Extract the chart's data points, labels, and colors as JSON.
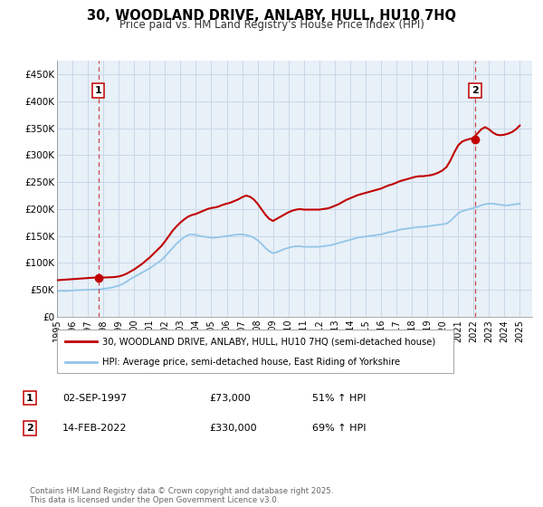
{
  "title": "30, WOODLAND DRIVE, ANLABY, HULL, HU10 7HQ",
  "subtitle": "Price paid vs. HM Land Registry's House Price Index (HPI)",
  "xlim": [
    1995.0,
    2025.8
  ],
  "ylim": [
    0,
    475000
  ],
  "yticks": [
    0,
    50000,
    100000,
    150000,
    200000,
    250000,
    300000,
    350000,
    400000,
    450000
  ],
  "ytick_labels": [
    "£0",
    "£50K",
    "£100K",
    "£150K",
    "£200K",
    "£250K",
    "£300K",
    "£350K",
    "£400K",
    "£450K"
  ],
  "xticks": [
    1995,
    1996,
    1997,
    1998,
    1999,
    2000,
    2001,
    2002,
    2003,
    2004,
    2005,
    2006,
    2007,
    2008,
    2009,
    2010,
    2011,
    2012,
    2013,
    2014,
    2015,
    2016,
    2017,
    2018,
    2019,
    2020,
    2021,
    2022,
    2023,
    2024,
    2025
  ],
  "hpi_line_color": "#92C5E8",
  "price_line_color": "#C00000",
  "marker_color": "#C00000",
  "vline_color": "#C00000",
  "grid_color": "#C8D8E8",
  "background_color": "#E8F0F8",
  "legend_label_price": "30, WOODLAND DRIVE, ANLABY, HULL, HU10 7HQ (semi-detached house)",
  "legend_label_hpi": "HPI: Average price, semi-detached house, East Riding of Yorkshire",
  "sale1_x": 1997.67,
  "sale1_y": 73000,
  "sale1_label": "1",
  "sale2_x": 2022.12,
  "sale2_y": 330000,
  "sale2_label": "2",
  "footer": "Contains HM Land Registry data © Crown copyright and database right 2025.\nThis data is licensed under the Open Government Licence v3.0.",
  "table_rows": [
    {
      "num": "1",
      "date": "02-SEP-1997",
      "price": "£73,000",
      "hpi": "51% ↑ HPI"
    },
    {
      "num": "2",
      "date": "14-FEB-2022",
      "price": "£330,000",
      "hpi": "69% ↑ HPI"
    }
  ],
  "hpi_data_x": [
    1995.0,
    1995.25,
    1995.5,
    1995.75,
    1996.0,
    1996.25,
    1996.5,
    1996.75,
    1997.0,
    1997.25,
    1997.5,
    1997.75,
    1998.0,
    1998.25,
    1998.5,
    1998.75,
    1999.0,
    1999.25,
    1999.5,
    1999.75,
    2000.0,
    2000.25,
    2000.5,
    2000.75,
    2001.0,
    2001.25,
    2001.5,
    2001.75,
    2002.0,
    2002.25,
    2002.5,
    2002.75,
    2003.0,
    2003.25,
    2003.5,
    2003.75,
    2004.0,
    2004.25,
    2004.5,
    2004.75,
    2005.0,
    2005.25,
    2005.5,
    2005.75,
    2006.0,
    2006.25,
    2006.5,
    2006.75,
    2007.0,
    2007.25,
    2007.5,
    2007.75,
    2008.0,
    2008.25,
    2008.5,
    2008.75,
    2009.0,
    2009.25,
    2009.5,
    2009.75,
    2010.0,
    2010.25,
    2010.5,
    2010.75,
    2011.0,
    2011.25,
    2011.5,
    2011.75,
    2012.0,
    2012.25,
    2012.5,
    2012.75,
    2013.0,
    2013.25,
    2013.5,
    2013.75,
    2014.0,
    2014.25,
    2014.5,
    2014.75,
    2015.0,
    2015.25,
    2015.5,
    2015.75,
    2016.0,
    2016.25,
    2016.5,
    2016.75,
    2017.0,
    2017.25,
    2017.5,
    2017.75,
    2018.0,
    2018.25,
    2018.5,
    2018.75,
    2019.0,
    2019.25,
    2019.5,
    2019.75,
    2020.0,
    2020.25,
    2020.5,
    2020.75,
    2021.0,
    2021.25,
    2021.5,
    2021.75,
    2022.0,
    2022.25,
    2022.5,
    2022.75,
    2023.0,
    2023.25,
    2023.5,
    2023.75,
    2024.0,
    2024.25,
    2024.5,
    2024.75,
    2025.0
  ],
  "hpi_data_y": [
    48000,
    48200,
    48000,
    48500,
    49000,
    49500,
    49800,
    50000,
    50200,
    50500,
    50800,
    51000,
    52000,
    53000,
    54000,
    56000,
    58000,
    61000,
    65000,
    70000,
    74000,
    78000,
    82000,
    86000,
    90000,
    95000,
    100000,
    105000,
    112000,
    120000,
    128000,
    136000,
    142000,
    148000,
    152000,
    153000,
    152000,
    150000,
    149000,
    148000,
    147000,
    147000,
    148000,
    149000,
    150000,
    151000,
    152000,
    153000,
    153000,
    152000,
    150000,
    147000,
    142000,
    136000,
    128000,
    122000,
    118000,
    120000,
    123000,
    126000,
    128000,
    130000,
    131000,
    131000,
    130000,
    130000,
    130000,
    130000,
    130000,
    131000,
    132000,
    133000,
    135000,
    137000,
    139000,
    141000,
    143000,
    145000,
    147000,
    148000,
    149000,
    150000,
    151000,
    152000,
    153000,
    155000,
    157000,
    158000,
    160000,
    162000,
    163000,
    164000,
    165000,
    166000,
    167000,
    167000,
    168000,
    169000,
    170000,
    171000,
    172000,
    173000,
    178000,
    185000,
    192000,
    196000,
    198000,
    200000,
    202000,
    204000,
    207000,
    209000,
    210000,
    210000,
    209000,
    208000,
    207000,
    207000,
    208000,
    209000,
    210000
  ],
  "price_data_x": [
    1995.0,
    1995.25,
    1995.5,
    1995.75,
    1996.0,
    1996.25,
    1996.5,
    1996.75,
    1997.0,
    1997.25,
    1997.5,
    1997.75,
    1998.0,
    1998.25,
    1998.5,
    1998.75,
    1999.0,
    1999.25,
    1999.5,
    1999.75,
    2000.0,
    2000.25,
    2000.5,
    2000.75,
    2001.0,
    2001.25,
    2001.5,
    2001.75,
    2002.0,
    2002.25,
    2002.5,
    2002.75,
    2003.0,
    2003.25,
    2003.5,
    2003.75,
    2004.0,
    2004.25,
    2004.5,
    2004.75,
    2005.0,
    2005.25,
    2005.5,
    2005.75,
    2006.0,
    2006.25,
    2006.5,
    2006.75,
    2007.0,
    2007.25,
    2007.5,
    2007.75,
    2008.0,
    2008.25,
    2008.5,
    2008.75,
    2009.0,
    2009.25,
    2009.5,
    2009.75,
    2010.0,
    2010.25,
    2010.5,
    2010.75,
    2011.0,
    2011.25,
    2011.5,
    2011.75,
    2012.0,
    2012.25,
    2012.5,
    2012.75,
    2013.0,
    2013.25,
    2013.5,
    2013.75,
    2014.0,
    2014.25,
    2014.5,
    2014.75,
    2015.0,
    2015.25,
    2015.5,
    2015.75,
    2016.0,
    2016.25,
    2016.5,
    2016.75,
    2017.0,
    2017.25,
    2017.5,
    2017.75,
    2018.0,
    2018.25,
    2018.5,
    2018.75,
    2019.0,
    2019.25,
    2019.5,
    2019.75,
    2020.0,
    2020.25,
    2020.5,
    2020.75,
    2021.0,
    2021.25,
    2021.5,
    2021.75,
    2022.0,
    2022.25,
    2022.5,
    2022.75,
    2023.0,
    2023.25,
    2023.5,
    2023.75,
    2024.0,
    2024.25,
    2024.5,
    2024.75,
    2025.0
  ],
  "price_data_y": [
    68000,
    68500,
    69000,
    69500,
    70000,
    70500,
    71000,
    71500,
    72000,
    72500,
    73000,
    73000,
    73000,
    73200,
    73500,
    74000,
    75000,
    77000,
    80000,
    84000,
    88000,
    93000,
    98000,
    104000,
    110000,
    117000,
    124000,
    131000,
    140000,
    150000,
    160000,
    168000,
    175000,
    181000,
    186000,
    189000,
    191000,
    194000,
    197000,
    200000,
    202000,
    203000,
    205000,
    208000,
    210000,
    212000,
    215000,
    218000,
    222000,
    225000,
    223000,
    218000,
    210000,
    200000,
    190000,
    182000,
    178000,
    182000,
    186000,
    190000,
    194000,
    197000,
    199000,
    200000,
    199000,
    199000,
    199000,
    199000,
    199000,
    200000,
    201000,
    203000,
    206000,
    209000,
    213000,
    217000,
    220000,
    223000,
    226000,
    228000,
    230000,
    232000,
    234000,
    236000,
    238000,
    241000,
    244000,
    246000,
    249000,
    252000,
    254000,
    256000,
    258000,
    260000,
    261000,
    261000,
    262000,
    263000,
    265000,
    268000,
    272000,
    278000,
    290000,
    305000,
    318000,
    325000,
    328000,
    330000,
    332000,
    340000,
    348000,
    352000,
    348000,
    342000,
    338000,
    337000,
    338000,
    340000,
    343000,
    348000,
    355000
  ]
}
